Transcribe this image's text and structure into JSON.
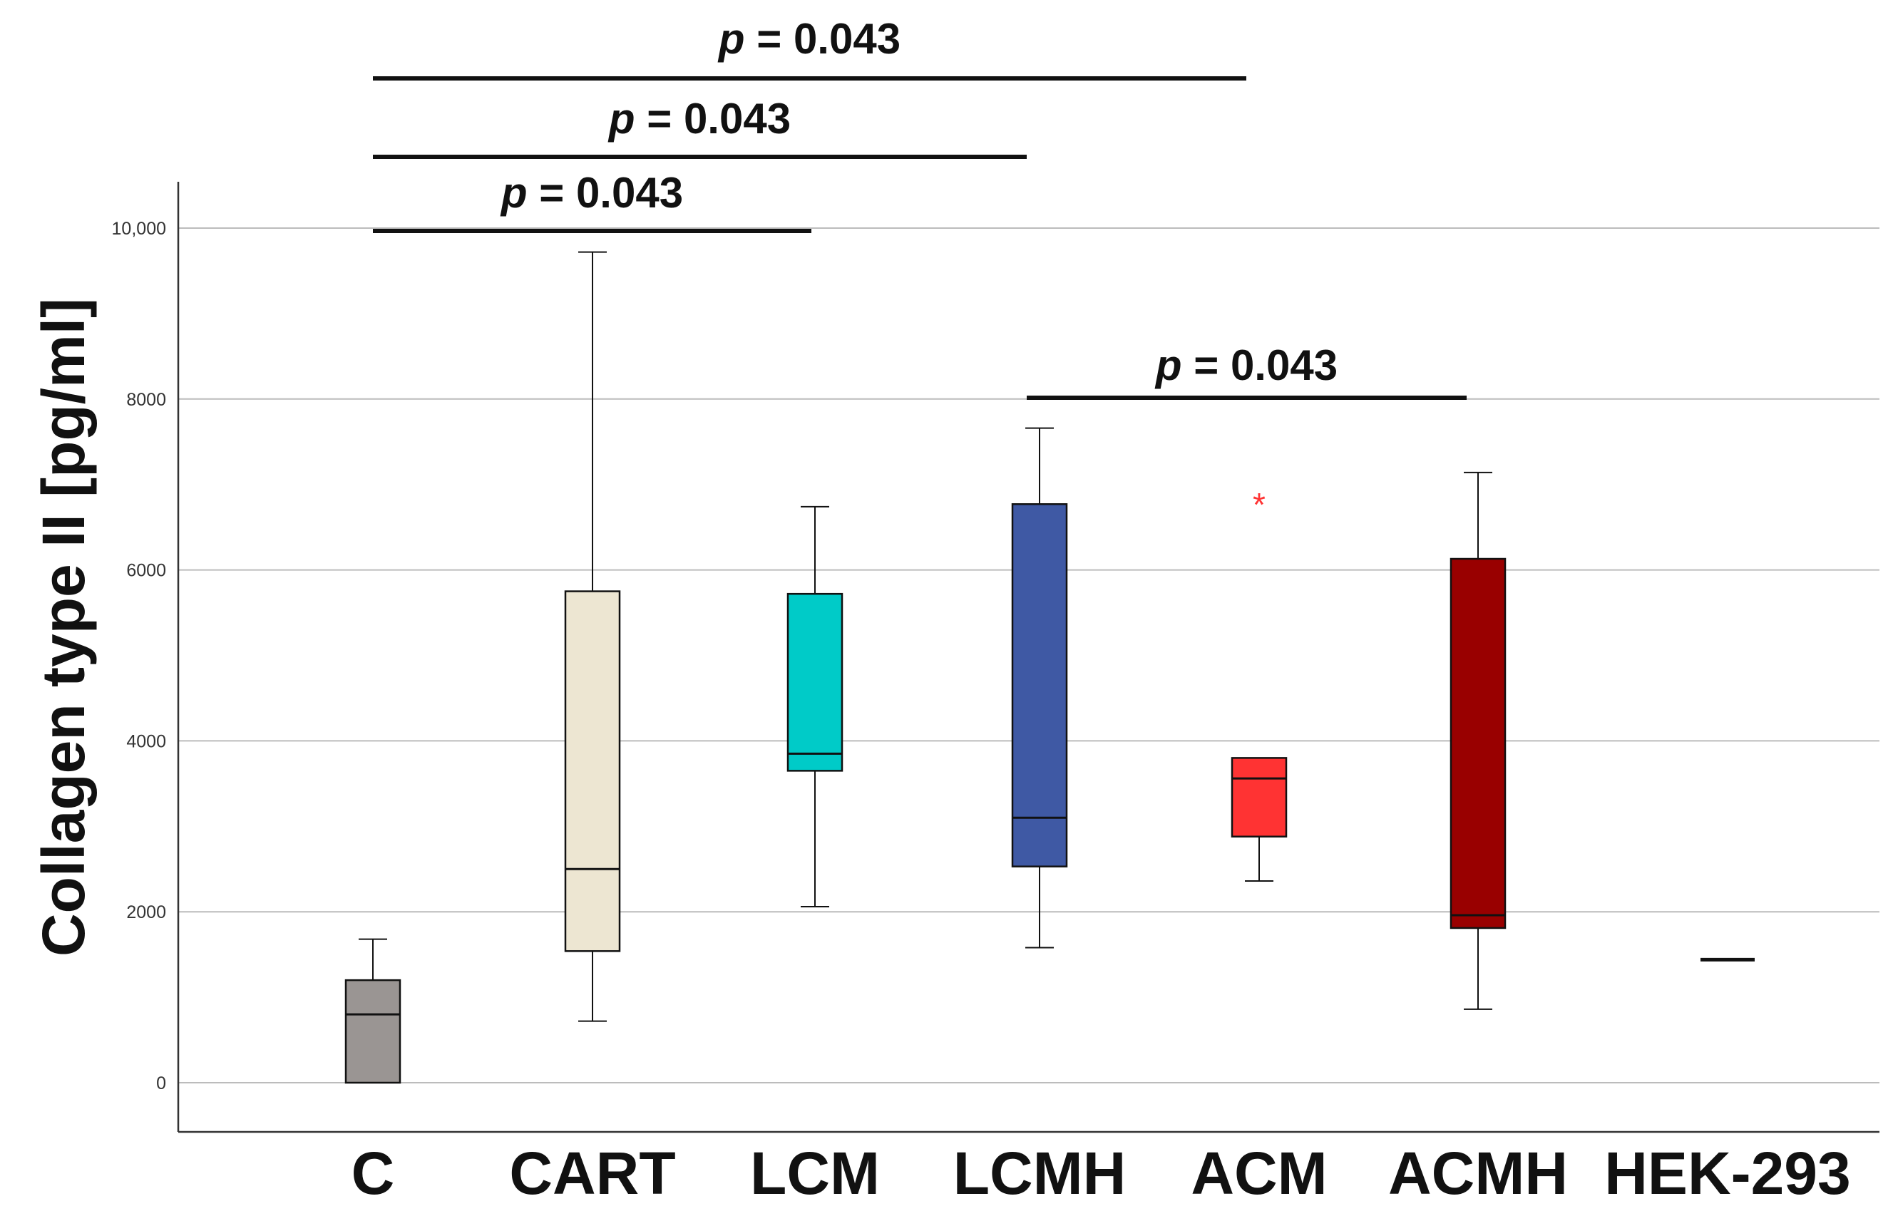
{
  "chart_data": {
    "type": "box",
    "ylabel": "Collagen type II [pg/ml]",
    "xlabel": "",
    "ylim": [
      -550,
      10550
    ],
    "y_ticks": [
      {
        "value": 0,
        "label": "0"
      },
      {
        "value": 2000,
        "label": "2000"
      },
      {
        "value": 4000,
        "label": "4000"
      },
      {
        "value": 6000,
        "label": "6000"
      },
      {
        "value": 8000,
        "label": "8000"
      },
      {
        "value": 10000,
        "label": "10,000"
      }
    ],
    "grid": true,
    "boxes": [
      {
        "label": "C",
        "whisker_low": 0,
        "q1": 0,
        "median": 800,
        "q3": 1200,
        "whisker_high": 1680,
        "color": "#9a9593",
        "outliers": []
      },
      {
        "label": "CART",
        "whisker_low": 720,
        "q1": 1540,
        "median": 2500,
        "q3": 5750,
        "whisker_high": 9720,
        "color": "#ede6d2",
        "outliers": []
      },
      {
        "label": "LCM",
        "whisker_low": 2060,
        "q1": 3650,
        "median": 3850,
        "q3": 5720,
        "whisker_high": 6740,
        "color": "#00cbc8",
        "outliers": []
      },
      {
        "label": "LCMH",
        "whisker_low": 1580,
        "q1": 2530,
        "median": 3100,
        "q3": 6770,
        "whisker_high": 7660,
        "color": "#3f59a4",
        "outliers": []
      },
      {
        "label": "ACM",
        "whisker_low": 2360,
        "q1": 2880,
        "median": 3560,
        "q3": 3800,
        "whisker_high": 3800,
        "color": "#ff3333",
        "outliers": [
          {
            "value": 6830,
            "symbol": "*"
          }
        ]
      },
      {
        "label": "ACMH",
        "whisker_low": 860,
        "q1": 1810,
        "median": 1960,
        "q3": 6130,
        "whisker_high": 7140,
        "color": "#990000",
        "outliers": []
      },
      {
        "label": "HEK-293",
        "whisker_low": 1440,
        "q1": 1440,
        "median": 1440,
        "q3": 1440,
        "whisker_high": 1440,
        "color": "#111111",
        "outliers": []
      }
    ],
    "annotations": [
      {
        "text_prefix": "p",
        "text_suffix": " = 0.043",
        "from": "C",
        "to": "ACM",
        "level": 10000
      },
      {
        "text_prefix": "p",
        "text_suffix": " = 0.043",
        "from": "C",
        "to": "LCMH",
        "level": 10000
      },
      {
        "text_prefix": "p",
        "text_suffix": " = 0.043",
        "from": "C",
        "to": "LCM",
        "level": 10000
      },
      {
        "text_prefix": "p",
        "text_suffix": " = 0.043",
        "from": "LCMH",
        "to": "ACMH",
        "level": 8000
      }
    ]
  }
}
